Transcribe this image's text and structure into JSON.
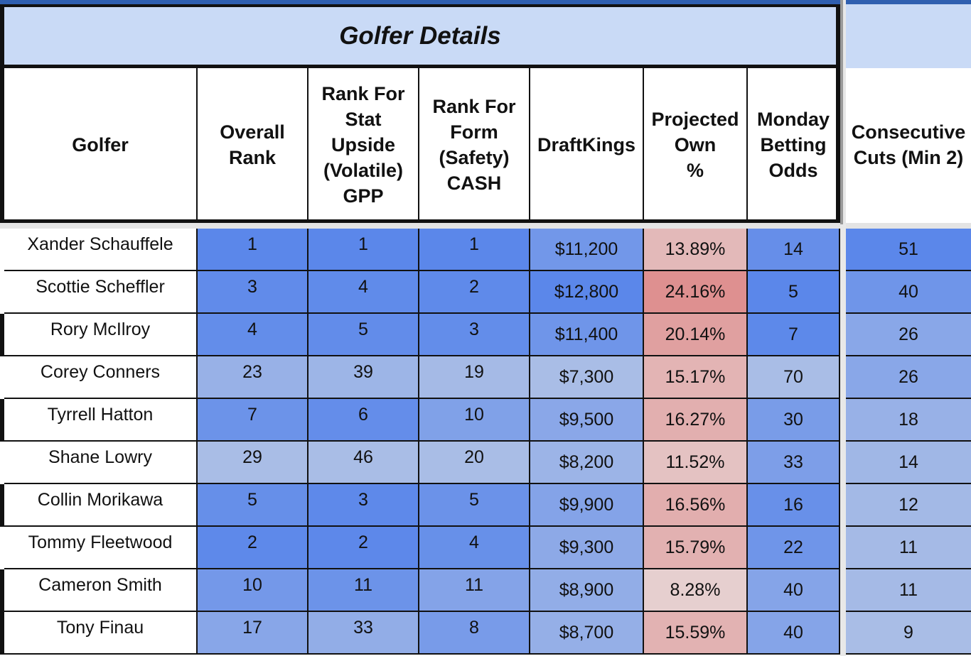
{
  "title": "Golfer Details",
  "colors": {
    "rank_strong": "#5b87ea",
    "rank_light": "#a9bde6",
    "own_high": "#de9090",
    "own_low": "#e6cfcf",
    "header_band": "#c9daf6"
  },
  "headers": [
    "Golfer",
    "Overall\nRank",
    "Rank For\nStat\nUpside\n(Volatile)\nGPP",
    "Rank For\nForm\n(Safety)\nCASH",
    "DraftKings",
    "Projected\nOwn\n%",
    "Monday\nBetting\nOdds",
    "Consecutive\nCuts (Min 2)"
  ],
  "rows": [
    {
      "golfer": "Xander Schauffele",
      "overall_rank": "1",
      "upside_rank": "1",
      "form_rank": "1",
      "draftkings": "$11,200",
      "proj_own": "13.89%",
      "odds": "14",
      "cuts": "51"
    },
    {
      "golfer": "Scottie Scheffler",
      "overall_rank": "3",
      "upside_rank": "4",
      "form_rank": "2",
      "draftkings": "$12,800",
      "proj_own": "24.16%",
      "odds": "5",
      "cuts": "40"
    },
    {
      "golfer": "Rory McIlroy",
      "overall_rank": "4",
      "upside_rank": "5",
      "form_rank": "3",
      "draftkings": "$11,400",
      "proj_own": "20.14%",
      "odds": "7",
      "cuts": "26"
    },
    {
      "golfer": "Corey Conners",
      "overall_rank": "23",
      "upside_rank": "39",
      "form_rank": "19",
      "draftkings": "$7,300",
      "proj_own": "15.17%",
      "odds": "70",
      "cuts": "26"
    },
    {
      "golfer": "Tyrrell Hatton",
      "overall_rank": "7",
      "upside_rank": "6",
      "form_rank": "10",
      "draftkings": "$9,500",
      "proj_own": "16.27%",
      "odds": "30",
      "cuts": "18"
    },
    {
      "golfer": "Shane Lowry",
      "overall_rank": "29",
      "upside_rank": "46",
      "form_rank": "20",
      "draftkings": "$8,200",
      "proj_own": "11.52%",
      "odds": "33",
      "cuts": "14"
    },
    {
      "golfer": "Collin Morikawa",
      "overall_rank": "5",
      "upside_rank": "3",
      "form_rank": "5",
      "draftkings": "$9,900",
      "proj_own": "16.56%",
      "odds": "16",
      "cuts": "12"
    },
    {
      "golfer": "Tommy Fleetwood",
      "overall_rank": "2",
      "upside_rank": "2",
      "form_rank": "4",
      "draftkings": "$9,300",
      "proj_own": "15.79%",
      "odds": "22",
      "cuts": "11"
    },
    {
      "golfer": "Cameron Smith",
      "overall_rank": "10",
      "upside_rank": "11",
      "form_rank": "11",
      "draftkings": "$8,900",
      "proj_own": "8.28%",
      "odds": "40",
      "cuts": "11"
    },
    {
      "golfer": "Tony Finau",
      "overall_rank": "17",
      "upside_rank": "33",
      "form_rank": "8",
      "draftkings": "$8,700",
      "proj_own": "15.59%",
      "odds": "40",
      "cuts": "9"
    }
  ]
}
